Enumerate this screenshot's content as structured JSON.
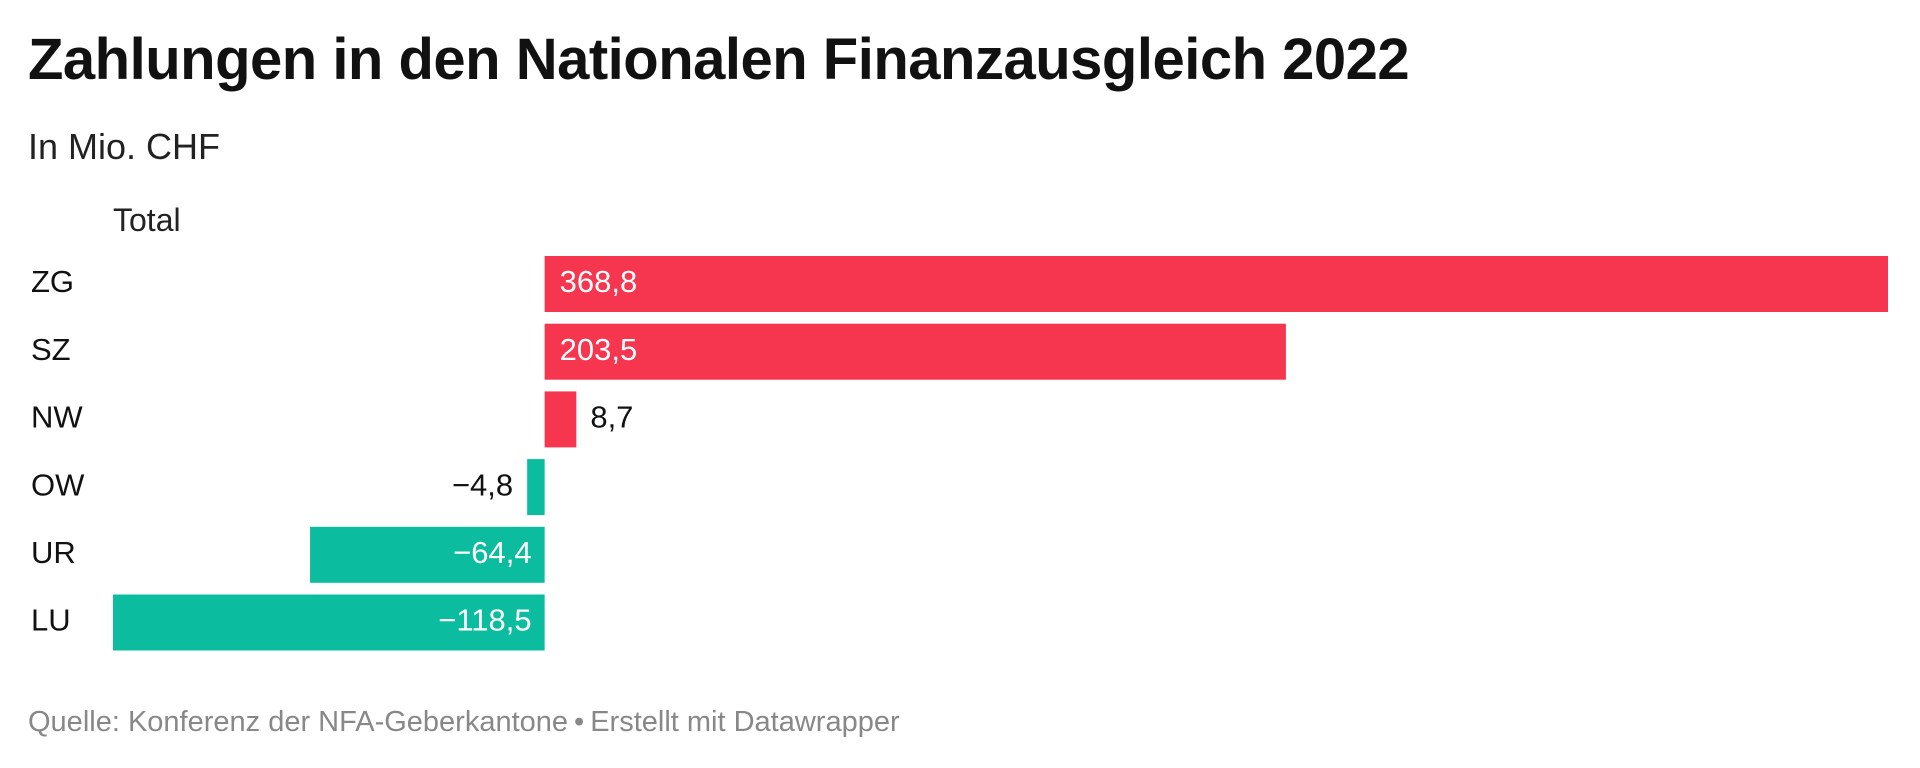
{
  "title": "Zahlungen in den Nationalen Finanzausgleich 2022",
  "subtitle": "In Mio. CHF",
  "column_header": "Total",
  "footer": {
    "source": "Quelle: Konferenz der NFA-Geberkantone",
    "separator": "•",
    "credit": "Erstellt mit Datawrapper"
  },
  "colors": {
    "positive": "#f6354f",
    "negative": "#0bbd9e",
    "text": "#111111",
    "muted": "#888888"
  },
  "chart_data": {
    "type": "bar",
    "orientation": "horizontal",
    "title": "Zahlungen in den Nationalen Finanzausgleich 2022",
    "subtitle": "In Mio. CHF",
    "column_header": "Total",
    "categories": [
      "ZG",
      "SZ",
      "NW",
      "OW",
      "UR",
      "LU"
    ],
    "values": [
      368.8,
      203.5,
      8.7,
      -4.8,
      -64.4,
      -118.5
    ],
    "value_labels": [
      "368,8",
      "203,5",
      "8,7",
      "−4,8",
      "−64,4",
      "−118,5"
    ],
    "xlim": [
      -118.5,
      368.8
    ],
    "grid": false,
    "legend": "none"
  }
}
